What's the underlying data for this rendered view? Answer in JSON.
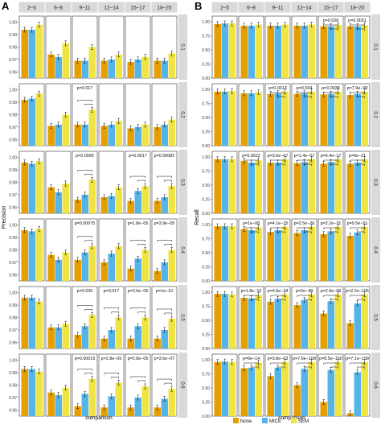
{
  "chart_data": {
    "type": "bar",
    "error_bars": true,
    "methods": [
      "None",
      "MICE",
      "SEM"
    ],
    "colors": {
      "None": "#E69F00",
      "MICE": "#56B4E9",
      "SEM": "#F0E442"
    },
    "groups": [
      "2–5",
      "6–8",
      "9–11",
      "12–14",
      "15–17",
      "18–20"
    ],
    "facets_row": [
      "0.1",
      "0.2",
      "0.3",
      "0.4",
      "0.5",
      "0.6"
    ],
    "xlabel": "comparison",
    "legend_position": "bottom",
    "panels": [
      {
        "letter": "A",
        "ylabel": "Precision",
        "ylim": [
          0.955,
          1.005
        ],
        "yticks": [
          "0.96",
          "0.97",
          "0.98",
          "0.99",
          "1.00"
        ],
        "yvals": [
          0.96,
          0.97,
          0.98,
          0.99,
          1.0
        ],
        "rows": [
          {
            "values": [
              [
                0.994,
                0.994,
                0.998
              ],
              [
                0.974,
                0.972,
                0.983
              ],
              [
                0.969,
                0.969,
                0.98
              ],
              [
                0.969,
                0.97,
                0.974
              ],
              [
                0.968,
                0.97,
                0.972
              ],
              [
                0.969,
                0.969,
                0.975
              ]
            ],
            "pvals": [
              "",
              "",
              "",
              "",
              "",
              ""
            ]
          },
          {
            "values": [
              [
                0.992,
                0.993,
                0.997
              ],
              [
                0.971,
                0.972,
                0.98
              ],
              [
                0.972,
                0.972,
                0.984
              ],
              [
                0.971,
                0.972,
                0.975
              ],
              [
                0.969,
                0.97,
                0.972
              ],
              [
                0.97,
                0.972,
                0.976
              ]
            ],
            "pvals": [
              "",
              "",
              "p=0.017",
              "",
              "",
              ""
            ]
          },
          {
            "values": [
              [
                0.996,
                0.995,
                0.997
              ],
              [
                0.976,
                0.972,
                0.979
              ],
              [
                0.966,
                0.97,
                0.982
              ],
              [
                0.968,
                0.969,
                0.976
              ],
              [
                0.965,
                0.973,
                0.977
              ],
              [
                0.965,
                0.968,
                0.977
              ]
            ],
            "pvals": [
              "",
              "",
              "p=0.0095",
              "",
              "p=0.0017",
              "p=0.00082"
            ]
          },
          {
            "values": [
              [
                0.996,
                0.995,
                0.997
              ],
              [
                0.976,
                0.972,
                0.978
              ],
              [
                0.972,
                0.978,
                0.983
              ],
              [
                0.97,
                0.977,
                0.983
              ],
              [
                0.965,
                0.973,
                0.98
              ],
              [
                0.963,
                0.97,
                0.98
              ]
            ],
            "pvals": [
              "",
              "",
              "p=0.00075",
              "",
              "p=1.8e−05",
              "p=3.9e−05"
            ]
          },
          {
            "values": [
              [
                0.996,
                0.996,
                0.993
              ],
              [
                0.972,
                0.972,
                0.975
              ],
              [
                0.966,
                0.973,
                0.982
              ],
              [
                0.963,
                0.97,
                0.98
              ],
              [
                0.963,
                0.973,
                0.98
              ],
              [
                0.963,
                0.97,
                0.979
              ]
            ],
            "pvals": [
              "",
              "",
              "p=0.035",
              "p=0.017",
              "p=3.6e−05",
              "p=1e−10"
            ]
          },
          {
            "values": [
              [
                0.993,
                0.993,
                0.991
              ],
              [
                0.974,
                0.972,
                0.978
              ],
              [
                0.963,
                0.973,
                0.985
              ],
              [
                0.962,
                0.971,
                0.982
              ],
              [
                0.962,
                0.97,
                0.979
              ],
              [
                0.962,
                0.969,
                0.977
              ]
            ],
            "pvals": [
              "",
              "",
              "p=0.00019",
              "p=2.8e−05",
              "p=2.8e−05",
              "p=3.6e−07"
            ]
          }
        ]
      },
      {
        "letter": "B",
        "ylabel": "Recall",
        "ylim": [
          0.0,
          1.1
        ],
        "yticks": [
          "0.00",
          "0.25",
          "0.50",
          "0.75",
          "1.00"
        ],
        "yvals": [
          0.0,
          0.25,
          0.5,
          0.75,
          1.0
        ],
        "rows": [
          {
            "values": [
              [
                0.96,
                0.97,
                0.97
              ],
              [
                0.93,
                0.93,
                0.95
              ],
              [
                0.93,
                0.93,
                0.95
              ],
              [
                0.93,
                0.93,
                0.95
              ],
              [
                0.92,
                0.92,
                0.94
              ],
              [
                0.92,
                0.92,
                0.94
              ]
            ],
            "pvals": [
              "",
              "",
              "",
              "",
              "p=0.026",
              "p=0.0031"
            ]
          },
          {
            "values": [
              [
                0.96,
                0.96,
                0.97
              ],
              [
                0.93,
                0.93,
                0.95
              ],
              [
                0.92,
                0.93,
                0.96
              ],
              [
                0.92,
                0.93,
                0.96
              ],
              [
                0.91,
                0.92,
                0.96
              ],
              [
                0.9,
                0.92,
                0.96
              ]
            ],
            "pvals": [
              "",
              "",
              "p=0.0013",
              "p=0.034",
              "p=0.0038",
              "p=7.9e−08"
            ]
          },
          {
            "values": [
              [
                0.96,
                0.96,
                0.96
              ],
              [
                0.93,
                0.9,
                0.94
              ],
              [
                0.9,
                0.9,
                0.96
              ],
              [
                0.89,
                0.91,
                0.96
              ],
              [
                0.88,
                0.91,
                0.96
              ],
              [
                0.88,
                0.9,
                0.96
              ]
            ],
            "pvals": [
              "",
              "p=0.0022",
              "p=3.6e−07",
              "p=1.4e−07",
              "p=6.4e−17",
              "p=6e−21"
            ]
          },
          {
            "values": [
              [
                0.97,
                0.97,
                0.97
              ],
              [
                0.92,
                0.9,
                0.95
              ],
              [
                0.87,
                0.9,
                0.96
              ],
              [
                0.85,
                0.9,
                0.96
              ],
              [
                0.83,
                0.88,
                0.96
              ],
              [
                0.8,
                0.86,
                0.96
              ]
            ],
            "pvals": [
              "",
              "p=1e−08",
              "p=4.1e−15",
              "p=2.5e−26",
              "p=2.2e−31",
              "p=9.5e−51"
            ]
          },
          {
            "values": [
              [
                0.97,
                0.97,
                0.96
              ],
              [
                0.9,
                0.89,
                0.95
              ],
              [
                0.83,
                0.88,
                0.96
              ],
              [
                0.77,
                0.86,
                0.96
              ],
              [
                0.62,
                0.84,
                0.96
              ],
              [
                0.45,
                0.8,
                0.96
              ]
            ],
            "pvals": [
              "",
              "p=1.8e−10",
              "p=4.5e−24",
              "p=2e−48",
              "p=2.9e−69",
              "p=2.2e−105"
            ]
          },
          {
            "values": [
              [
                0.96,
                0.97,
                0.96
              ],
              [
                0.85,
                0.86,
                0.95
              ],
              [
                0.71,
                0.86,
                0.96
              ],
              [
                0.55,
                0.84,
                0.96
              ],
              [
                0.25,
                0.82,
                0.96
              ],
              [
                0.05,
                0.78,
                0.96
              ]
            ],
            "pvals": [
              "",
              "p=6e−14",
              "p=3.8e−63",
              "p=7.6e−108",
              "p=8.5e−150",
              "p=7.1e−199"
            ]
          }
        ]
      }
    ]
  }
}
